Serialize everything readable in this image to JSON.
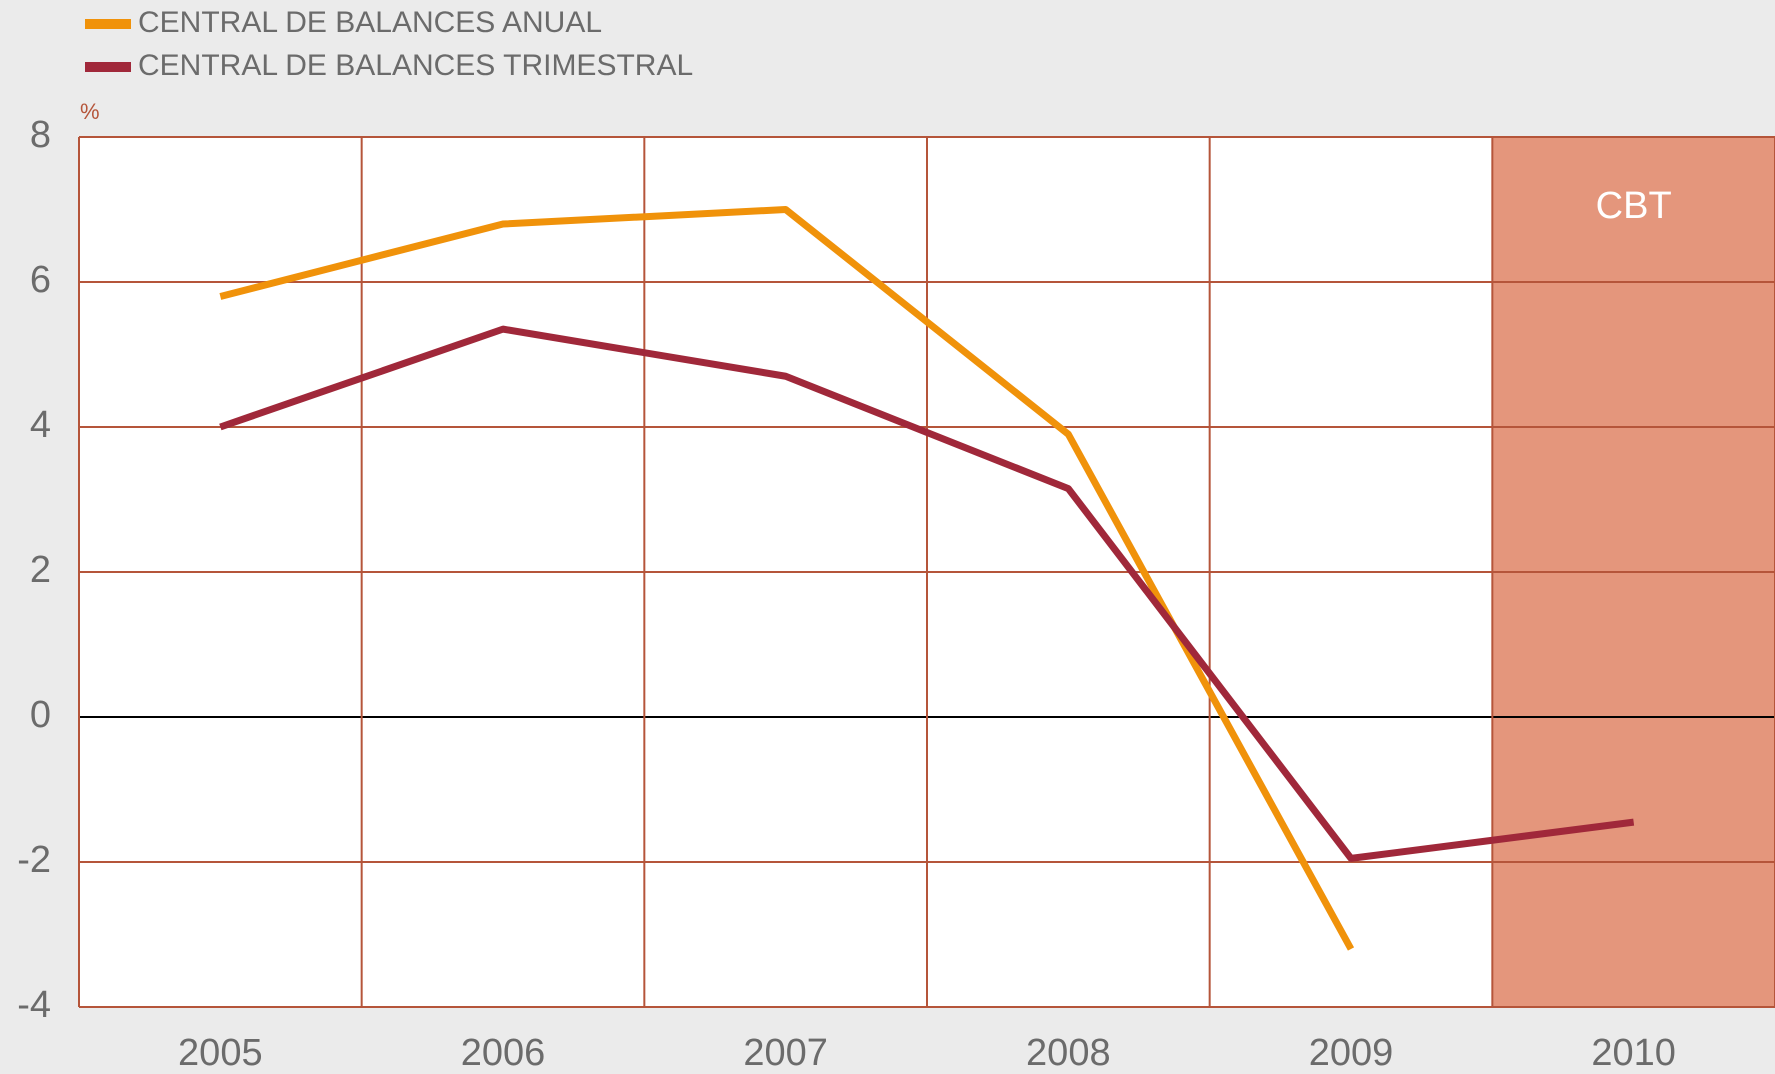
{
  "chart_data": {
    "type": "line",
    "y_unit": "%",
    "categories": [
      "2005",
      "2006",
      "2007",
      "2008",
      "2009",
      "2010"
    ],
    "series": [
      {
        "name": "CENTRAL DE BALANCES ANUAL",
        "color": "#f0920a",
        "values": [
          5.8,
          6.8,
          7.0,
          3.9,
          -3.2,
          null
        ]
      },
      {
        "name": "CENTRAL DE BALANCES TRIMESTRAL",
        "color": "#a0283a",
        "values": [
          4.0,
          5.35,
          4.7,
          3.15,
          -1.95,
          -1.45
        ]
      }
    ],
    "ylim": [
      -4,
      8
    ],
    "yticks": [
      -4,
      -2,
      0,
      2,
      4,
      6,
      8
    ],
    "grid": true,
    "shaded": {
      "label": "CBT",
      "category_index": 5,
      "color": "#e4967c"
    }
  }
}
